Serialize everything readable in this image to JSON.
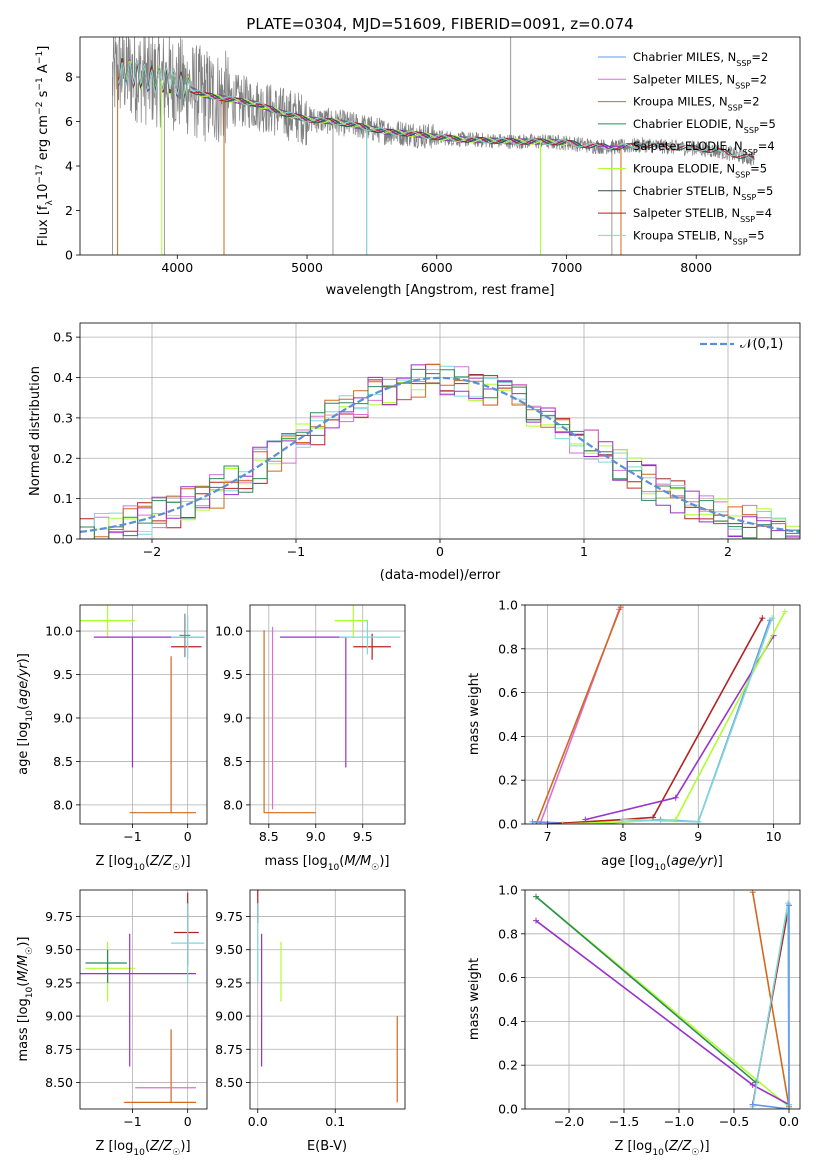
{
  "figure": {
    "title": "PLATE=0304, MJD=51609, FIBERID=0091, z=0.074"
  },
  "chart_data": [
    {
      "id": "spectrum",
      "type": "line",
      "xlabel": "wavelength [Angstrom, rest frame]",
      "ylabel": "Flux [f_λ 10^-17 erg cm^-2 s^-1 A^-1]",
      "xlim": [
        3250,
        8800
      ],
      "ylim": [
        0,
        9.8
      ],
      "xticks": [
        4000,
        5000,
        6000,
        7000,
        8000
      ],
      "yticks": [
        0,
        2,
        4,
        6,
        8
      ],
      "grid": false,
      "legend_position": "top-right",
      "data_color": "#808080",
      "data_range": [
        3500,
        8450
      ],
      "model_continuum": {
        "x": [
          3500,
          3560,
          3700,
          3800,
          3900,
          4000,
          4200,
          4400,
          4600,
          4800,
          5000,
          5200,
          5400,
          5600,
          5800,
          6000,
          6200,
          6400,
          6600,
          6800,
          7000,
          7200,
          7400,
          7600,
          7800,
          8000,
          8200,
          8450
        ],
        "y": [
          8.0,
          8.3,
          8.1,
          7.9,
          7.9,
          7.7,
          7.2,
          7.0,
          6.8,
          6.4,
          6.1,
          6.0,
          5.8,
          5.55,
          5.45,
          5.3,
          5.2,
          5.15,
          5.1,
          5.1,
          5.05,
          4.9,
          4.85,
          4.95,
          4.85,
          4.8,
          4.65,
          4.3
        ]
      },
      "series": [
        {
          "name": "Chabrier MILES, N_SSP=2",
          "color": "#6495ED",
          "x_end": 7450
        },
        {
          "name": "Salpeter MILES, N_SSP=2",
          "color": "#DA70D6",
          "x_end": 7450
        },
        {
          "name": "Kroupa MILES, N_SSP=2",
          "color": "#D2691E",
          "x_end": 7450
        },
        {
          "name": "Chabrier ELODIE, N_SSP=5",
          "color": "#2E8B57",
          "x_end": 7000
        },
        {
          "name": "Salpeter ELODIE, N_SSP=4",
          "color": "#9932CC",
          "x_end": 7000
        },
        {
          "name": "Kroupa ELODIE, N_SSP=5",
          "color": "#ADFF2F",
          "x_end": 7000
        },
        {
          "name": "Chabrier STELIB, N_SSP=5",
          "color": "#2F4F4F",
          "x_end": 8450
        },
        {
          "name": "Salpeter STELIB, N_SSP=4",
          "color": "#B22222",
          "x_end": 8450
        },
        {
          "name": "Kroupa STELIB, N_SSP=5",
          "color": "#7FD7DA",
          "x_end": 8450
        }
      ]
    },
    {
      "id": "residuals",
      "type": "line",
      "xlabel": "(data-model)/error",
      "ylabel": "Normed distribution",
      "xlim": [
        -2.5,
        2.5
      ],
      "ylim": [
        0,
        0.535
      ],
      "xticks": [
        -2,
        -1,
        0,
        1,
        2
      ],
      "yticks": [
        0.0,
        0.1,
        0.2,
        0.3,
        0.4,
        0.5
      ],
      "grid": true,
      "legend_position": "top-right",
      "reference": {
        "name": "𝒩(0,1)",
        "color": "#5B8FD6",
        "mean": 0,
        "std": 1
      },
      "step_colors": [
        "#B22222",
        "#DA70D6",
        "#ADFF2F",
        "#7FD7DA",
        "#D2691E",
        "#9932CC",
        "#2E8B57"
      ],
      "bin_width": 0.1
    },
    {
      "id": "age-vs-Z",
      "type": "scatter",
      "xlabel": "Z [log10(Z/Z☉)]",
      "ylabel": "age  [log10(age/yr)]",
      "xlim": [
        -1.95,
        0.35
      ],
      "ylim": [
        7.78,
        10.3
      ],
      "xticks": [
        -1,
        0
      ],
      "yticks": [
        8.0,
        8.5,
        9.0,
        9.5,
        10.0
      ],
      "grid": true,
      "points": [
        {
          "x": -1.45,
          "y": 10.12,
          "xerr": [
            0.5,
            0.5
          ],
          "yerr": [
            0.2,
            0.2
          ],
          "color": "#ADFF2F"
        },
        {
          "x": -1.0,
          "y": 9.93,
          "xerr": [
            0.7,
            1.3
          ],
          "yerr": [
            1.5,
            0.0
          ],
          "color": "#9932CC"
        },
        {
          "x": -0.3,
          "y": 7.91,
          "xerr": [
            0.75,
            0.45
          ],
          "yerr": [
            0.0,
            1.8
          ],
          "color": "#D2691E"
        },
        {
          "x": 0.0,
          "y": 9.82,
          "xerr": [
            0.3,
            0.25
          ],
          "yerr": [
            0.0,
            0.0
          ],
          "color": "#B22222"
        },
        {
          "x": 0.0,
          "y": 9.93,
          "xerr": [
            0.3,
            0.3
          ],
          "yerr": [
            0.25,
            0.25
          ],
          "color": "#7FD7DA"
        },
        {
          "x": -0.05,
          "y": 9.95,
          "xerr": [
            0.1,
            0.1
          ],
          "yerr": [
            0.25,
            0.25
          ],
          "color": "#808080"
        }
      ]
    },
    {
      "id": "age-vs-mass",
      "type": "scatter",
      "xlabel": "mass [log10(M/M☉)]",
      "ylabel": "",
      "xlim": [
        8.3,
        9.95
      ],
      "ylim": [
        7.78,
        10.3
      ],
      "xticks": [
        8.5,
        9.0,
        9.5
      ],
      "yticks": [
        8.0,
        8.5,
        9.0,
        9.5,
        10.0
      ],
      "grid": true,
      "points": [
        {
          "x": 9.4,
          "y": 10.12,
          "xerr": [
            0.2,
            0.15
          ],
          "yerr": [
            0.2,
            0.2
          ],
          "color": "#ADFF2F"
        },
        {
          "x": 9.32,
          "y": 9.93,
          "xerr": [
            0.7,
            0.0
          ],
          "yerr": [
            1.5,
            0.0
          ],
          "color": "#9932CC"
        },
        {
          "x": 8.45,
          "y": 7.91,
          "xerr": [
            0.0,
            0.55
          ],
          "yerr": [
            0.0,
            2.1
          ],
          "color": "#D2691E"
        },
        {
          "x": 9.6,
          "y": 9.82,
          "xerr": [
            0.2,
            0.2
          ],
          "yerr": [
            0.15,
            0.15
          ],
          "color": "#B22222"
        },
        {
          "x": 9.55,
          "y": 9.93,
          "xerr": [
            0.3,
            0.35
          ],
          "yerr": [
            0.2,
            0.2
          ],
          "color": "#7FD7DA"
        },
        {
          "x": 8.54,
          "y": 7.95,
          "xerr": [
            0.0,
            0.0
          ],
          "yerr": [
            0.0,
            2.1
          ],
          "color": "#DA70D6"
        }
      ]
    },
    {
      "id": "mass-weight-vs-age",
      "type": "line",
      "xlabel": "age  [log10(age/yr)]",
      "ylabel": "mass weight",
      "xlim": [
        6.7,
        10.35
      ],
      "ylim": [
        0,
        1.0
      ],
      "xticks": [
        7,
        8,
        9,
        10
      ],
      "yticks": [
        0.0,
        0.2,
        0.4,
        0.6,
        0.8,
        1.0
      ],
      "grid": true,
      "series": [
        {
          "color": "#DA70D6",
          "x": [
            6.9,
            7.95
          ],
          "y": [
            0.0,
            0.98
          ]
        },
        {
          "color": "#D2691E",
          "x": [
            6.85,
            7.97
          ],
          "y": [
            0.0,
            0.99
          ]
        },
        {
          "color": "#6495ED",
          "x": [
            6.8,
            7.6,
            8.5,
            9.0,
            9.95
          ],
          "y": [
            0.01,
            0.0,
            0.02,
            0.01,
            0.93
          ]
        },
        {
          "color": "#B22222",
          "x": [
            7.0,
            8.0,
            8.4,
            9.85
          ],
          "y": [
            0.0,
            0.02,
            0.03,
            0.94
          ]
        },
        {
          "color": "#9932CC",
          "x": [
            7.5,
            8.7,
            10.0
          ],
          "y": [
            0.02,
            0.12,
            0.86
          ]
        },
        {
          "color": "#ADFF2F",
          "x": [
            7.2,
            8.0,
            8.7,
            10.15
          ],
          "y": [
            0.0,
            0.01,
            0.02,
            0.97
          ]
        },
        {
          "color": "#7FD7DA",
          "x": [
            8.0,
            9.0,
            9.98
          ],
          "y": [
            0.02,
            0.01,
            0.94
          ]
        }
      ]
    },
    {
      "id": "mass-vs-Z",
      "type": "scatter",
      "xlabel": "Z [log10(Z/Z☉)]",
      "ylabel": "mass [log10(M/M☉)]",
      "xlim": [
        -1.95,
        0.35
      ],
      "ylim": [
        8.3,
        9.95
      ],
      "xticks": [
        -1,
        0
      ],
      "yticks": [
        8.5,
        8.75,
        9.0,
        9.25,
        9.5,
        9.75
      ],
      "grid": true,
      "points": [
        {
          "x": -1.45,
          "y": 9.36,
          "xerr": [
            0.4,
            0.5
          ],
          "yerr": [
            0.25,
            0.2
          ],
          "color": "#ADFF2F"
        },
        {
          "x": -1.45,
          "y": 9.4,
          "xerr": [
            0.4,
            0.35
          ],
          "yerr": [
            0.15,
            0.1
          ],
          "color": "#2E8B57"
        },
        {
          "x": -1.05,
          "y": 9.32,
          "xerr": [
            0.9,
            1.2
          ],
          "yerr": [
            0.7,
            0.3
          ],
          "color": "#9932CC"
        },
        {
          "x": -0.3,
          "y": 8.35,
          "xerr": [
            0.85,
            0.45
          ],
          "yerr": [
            0.0,
            0.55
          ],
          "color": "#D2691E"
        },
        {
          "x": -0.45,
          "y": 8.46,
          "xerr": [
            0.5,
            0.6
          ],
          "yerr": [
            0.0,
            0.0
          ],
          "color": "#DA70D6"
        },
        {
          "x": 0.0,
          "y": 9.63,
          "xerr": [
            0.25,
            0.2
          ],
          "yerr": [
            0.25,
            0.3
          ],
          "color": "#B22222"
        },
        {
          "x": 0.0,
          "y": 9.55,
          "xerr": [
            0.3,
            0.3
          ],
          "yerr": [
            0.3,
            0.3
          ],
          "color": "#7FD7DA"
        }
      ]
    },
    {
      "id": "mass-vs-EBV",
      "type": "scatter",
      "xlabel": "E(B-V)",
      "ylabel": "",
      "xlim": [
        -0.01,
        0.19
      ],
      "ylim": [
        8.3,
        9.95
      ],
      "xticks": [
        0.0,
        0.1
      ],
      "yticks": [
        8.5,
        8.75,
        9.0,
        9.25,
        9.5,
        9.75
      ],
      "grid": true,
      "points": [
        {
          "x": 0.005,
          "y": 9.32,
          "xerr": [
            0,
            0
          ],
          "yerr": [
            0.7,
            0.3
          ],
          "color": "#9932CC"
        },
        {
          "x": 0.0,
          "y": 9.8,
          "xerr": [
            0,
            0
          ],
          "yerr": [
            0.1,
            0.15
          ],
          "color": "#B22222"
        },
        {
          "x": 0.0,
          "y": 9.55,
          "xerr": [
            0,
            0
          ],
          "yerr": [
            0.3,
            0.3
          ],
          "color": "#7FD7DA"
        },
        {
          "x": 0.03,
          "y": 9.36,
          "xerr": [
            0,
            0
          ],
          "yerr": [
            0.25,
            0.2
          ],
          "color": "#ADFF2F"
        },
        {
          "x": 0.18,
          "y": 8.35,
          "xerr": [
            0,
            0
          ],
          "yerr": [
            0.0,
            0.65
          ],
          "color": "#D2691E"
        }
      ]
    },
    {
      "id": "mass-weight-vs-Z",
      "type": "line",
      "xlabel": "Z [log10(Z/Z☉)]",
      "ylabel": "mass weight",
      "xlim": [
        -2.4,
        0.1
      ],
      "ylim": [
        0,
        1.0
      ],
      "xticks": [
        -2.0,
        -1.5,
        -1.0,
        -0.5,
        0.0
      ],
      "yticks": [
        0.0,
        0.2,
        0.4,
        0.6,
        0.8,
        1.0
      ],
      "grid": true,
      "series": [
        {
          "color": "#ADFF2F",
          "x": [
            -2.3,
            0.0
          ],
          "y": [
            0.97,
            0.01
          ]
        },
        {
          "color": "#2E8B57",
          "x": [
            -2.3,
            -0.3
          ],
          "y": [
            0.97,
            0.12
          ]
        },
        {
          "color": "#9932CC",
          "x": [
            -2.3,
            -0.33,
            0.0
          ],
          "y": [
            0.86,
            0.11,
            0.02
          ]
        },
        {
          "color": "#D2691E",
          "x": [
            -0.33,
            0.0
          ],
          "y": [
            0.99,
            0.01
          ]
        },
        {
          "color": "#B22222",
          "x": [
            -0.33,
            0.0
          ],
          "y": [
            0.02,
            0.93
          ]
        },
        {
          "color": "#7FD7DA",
          "x": [
            -0.33,
            -0.01,
            0.0
          ],
          "y": [
            0.01,
            0.94,
            0.02
          ]
        },
        {
          "color": "#6495ED",
          "x": [
            -0.33,
            0.0,
            0.0
          ],
          "y": [
            0.02,
            0.0,
            0.93
          ]
        }
      ]
    }
  ]
}
